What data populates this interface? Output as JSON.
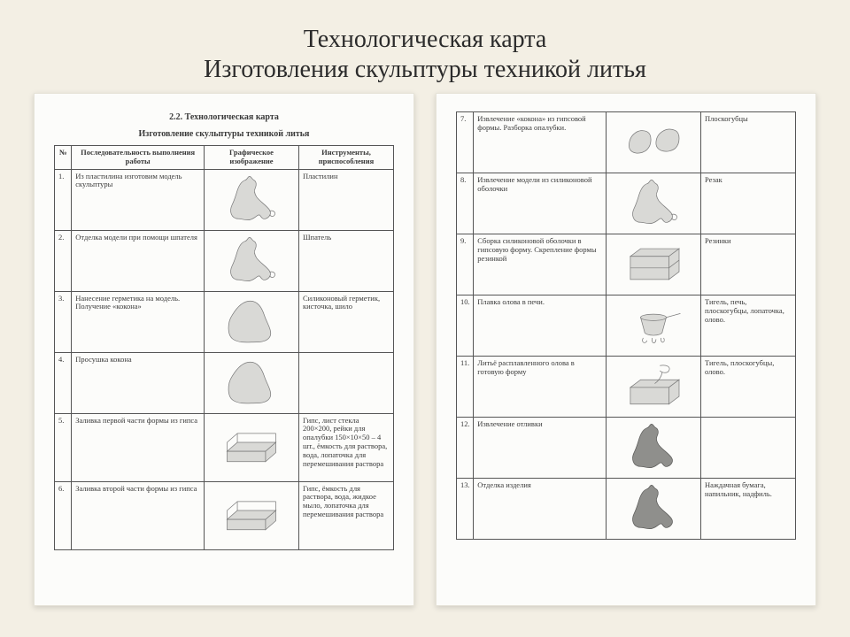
{
  "slide": {
    "title": "Технологическая карта\nИзготовления скульптуры техникой литья",
    "background_color": "#f3efe4",
    "page_background": "#fcfcfa",
    "title_fontsize": 28,
    "title_font": "Times New Roman"
  },
  "page1": {
    "doc_label": "2.2. Технологическая карта",
    "doc_title": "Изготовление скульптуры техникой литья",
    "columns": {
      "num": "№",
      "step": "Последовательность выполнения работы",
      "image": "Графическое изображение",
      "tools": "Инструменты, приспособления"
    },
    "rows": [
      {
        "n": "1.",
        "step": "Из пластилина изготовим модель скульптуры",
        "tools": "Пластилин",
        "icon": "dog"
      },
      {
        "n": "2.",
        "step": "Отделка модели при помощи шпателя",
        "tools": "Шпатель",
        "icon": "dog"
      },
      {
        "n": "3.",
        "step": "Нанесение герметика на модель. Получение «кокона»",
        "tools": "Силиконовый герметик, кисточка, шило",
        "icon": "blob"
      },
      {
        "n": "4.",
        "step": "Просушка кокона",
        "tools": "",
        "icon": "blob"
      },
      {
        "n": "5.",
        "step": "Заливка первой части формы из гипса",
        "tools": "Гипс, лист стекла 200×200, рейки для опалубки 150×10×50 – 4 шт., ёмкость для раствора, вода, лопаточка для перемешивания раствора",
        "icon": "box-open"
      },
      {
        "n": "6.",
        "step": "Заливка второй части формы из гипса",
        "tools": "Гипс, ёмкость для раствора, вода, жидкое мыло, лопаточка для перемешивания раствора",
        "icon": "box-open"
      }
    ]
  },
  "page2": {
    "rows": [
      {
        "n": "7.",
        "step": "Извлечение «кокона» из гипсовой формы. Разборка опалубки.",
        "tools": "Плоскогубцы",
        "icon": "halves"
      },
      {
        "n": "8.",
        "step": "Извлечение модели из силиконовой оболочки",
        "tools": "Резак",
        "icon": "dog"
      },
      {
        "n": "9.",
        "step": "Сборка силиконовой оболочки в гипсовую форму. Скрепление формы резинкой",
        "tools": "Резинки",
        "icon": "box-closed"
      },
      {
        "n": "10.",
        "step": "Плавка олова в печи.",
        "tools": "Тигель, печь, плоскогубцы, лопаточка, олово.",
        "icon": "crucible"
      },
      {
        "n": "11.",
        "step": "Литьё расплавленного олова в готовую форму",
        "tools": "Тигель, плоскогубцы, олово.",
        "icon": "pour-box"
      },
      {
        "n": "12.",
        "step": "Извлечение отливки",
        "tools": "",
        "icon": "dog-dark"
      },
      {
        "n": "13.",
        "step": "Отделка изделия",
        "tools": "Наждачная бумага, напильник, надфиль.",
        "icon": "dog-dark"
      }
    ]
  },
  "styles": {
    "table_border_color": "#555555",
    "sketch_stroke": "#7a7a7a",
    "sketch_fill": "#d9d9d6",
    "page_shadow": "rgba(0,0,0,0.15)"
  }
}
